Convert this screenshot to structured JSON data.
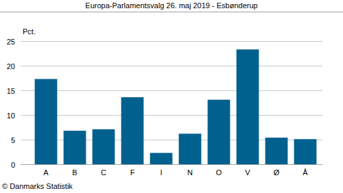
{
  "chart_data": {
    "type": "bar",
    "title": "Europa-Parlamentsvalg 26. maj 2019 - Esbønderup",
    "y_label": "Pct.",
    "source": "© Danmarks Statistik",
    "categories": [
      "A",
      "B",
      "C",
      "F",
      "I",
      "N",
      "O",
      "V",
      "Ø",
      "Å"
    ],
    "values": [
      17.3,
      6.8,
      7.1,
      13.6,
      2.3,
      6.2,
      13.1,
      23.3,
      5.4,
      5.1
    ],
    "color": "#00608e",
    "ylim": [
      0,
      25
    ],
    "yticks": [
      0,
      5,
      10,
      15,
      20,
      25
    ],
    "grid": true
  }
}
